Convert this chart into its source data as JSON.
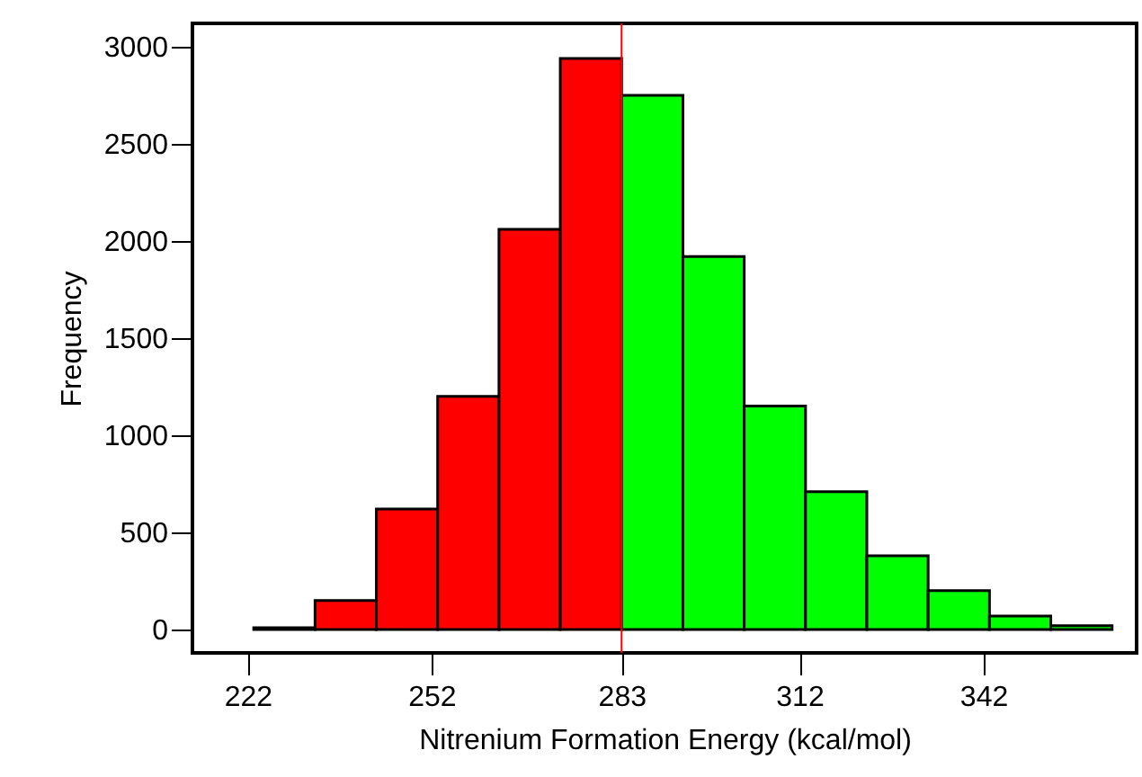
{
  "chart_data": {
    "type": "histogram",
    "xlabel": "Nitrenium Formation Energy (kcal/mol)",
    "ylabel": "Frequency",
    "bins": [
      223,
      233,
      243,
      253,
      263,
      273,
      283,
      293,
      303,
      313,
      323,
      333,
      343,
      353,
      363
    ],
    "values": [
      10,
      150,
      620,
      1200,
      2060,
      2940,
      2750,
      1920,
      1150,
      710,
      380,
      200,
      70,
      20
    ],
    "colors": [
      "#ff0000",
      "#ff0000",
      "#ff0000",
      "#ff0000",
      "#ff0000",
      "#ff0000",
      "#00ff00",
      "#00ff00",
      "#00ff00",
      "#00ff00",
      "#00ff00",
      "#00ff00",
      "#00ff00",
      "#00ff00"
    ],
    "xlim": [
      213,
      367
    ],
    "ylim": [
      -120,
      3120
    ],
    "xticks": [
      222,
      252,
      283,
      312,
      342
    ],
    "yticks": [
      0,
      500,
      1000,
      1500,
      2000,
      2500,
      3000
    ],
    "ref_lines": [
      {
        "axis": "x",
        "value": 283,
        "color": "#ff0000"
      }
    ]
  }
}
